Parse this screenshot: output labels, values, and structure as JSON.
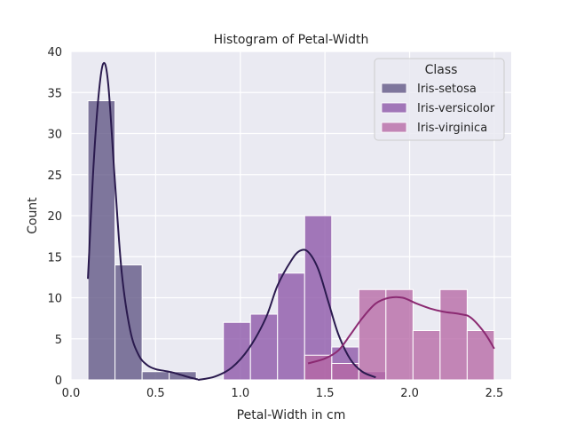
{
  "chart_data": {
    "type": "histogram",
    "title": "Histogram of Petal-Width",
    "xlabel": "Petal-Width in cm",
    "ylabel": "Count",
    "xlim": [
      0.0,
      2.6
    ],
    "ylim": [
      0,
      40
    ],
    "x_ticks": [
      "0.0",
      "0.5",
      "1.0",
      "1.5",
      "2.0",
      "2.5"
    ],
    "y_ticks": [
      "0",
      "5",
      "10",
      "15",
      "20",
      "25",
      "30",
      "35",
      "40"
    ],
    "grid": true,
    "legend": {
      "title": "Class",
      "placement": "top-right"
    },
    "bin_edges": [
      0.1,
      0.26,
      0.42,
      0.58,
      0.74,
      0.9,
      1.06,
      1.22,
      1.38,
      1.54,
      1.7,
      1.86,
      2.02,
      2.18,
      2.34,
      2.5
    ],
    "series": [
      {
        "name": "Iris-setosa",
        "color": "#5f5584",
        "line_color": "#2a1a4e",
        "counts": [
          34,
          14,
          1,
          1,
          0,
          0,
          0,
          0,
          0,
          0,
          0,
          0,
          0,
          0,
          0
        ],
        "kde": [
          [
            0.1,
            12.3
          ],
          [
            0.13,
            25
          ],
          [
            0.16,
            34
          ],
          [
            0.19,
            38.5
          ],
          [
            0.22,
            36
          ],
          [
            0.26,
            24
          ],
          [
            0.3,
            13
          ],
          [
            0.35,
            6
          ],
          [
            0.4,
            3
          ],
          [
            0.45,
            1.8
          ],
          [
            0.5,
            1.3
          ],
          [
            0.55,
            1.1
          ],
          [
            0.6,
            0.9
          ],
          [
            0.65,
            0.6
          ],
          [
            0.7,
            0.3
          ],
          [
            0.75,
            0.05
          ]
        ]
      },
      {
        "name": "Iris-versicolor",
        "color": "#8c54a8",
        "line_color": "#2a1a4e",
        "counts": [
          0,
          0,
          0,
          0,
          0,
          7,
          8,
          13,
          20,
          4,
          1,
          0,
          0,
          0,
          0
        ],
        "kde": [
          [
            0.75,
            0
          ],
          [
            0.85,
            0.4
          ],
          [
            0.95,
            1.5
          ],
          [
            1.05,
            3.8
          ],
          [
            1.15,
            7.5
          ],
          [
            1.22,
            11.5
          ],
          [
            1.3,
            14.5
          ],
          [
            1.35,
            15.7
          ],
          [
            1.4,
            15.6
          ],
          [
            1.46,
            13.5
          ],
          [
            1.52,
            9.5
          ],
          [
            1.58,
            5.5
          ],
          [
            1.65,
            2.5
          ],
          [
            1.72,
            1
          ],
          [
            1.8,
            0.3
          ]
        ]
      },
      {
        "name": "Iris-virginica",
        "color": "#b668a5",
        "line_color": "#8b2a72",
        "counts": [
          0,
          0,
          0,
          0,
          0,
          0,
          0,
          0,
          3,
          2,
          11,
          11,
          6,
          11,
          6
        ],
        "kde": [
          [
            1.4,
            2
          ],
          [
            1.5,
            2.6
          ],
          [
            1.58,
            3.6
          ],
          [
            1.65,
            5.5
          ],
          [
            1.72,
            7.5
          ],
          [
            1.8,
            9.3
          ],
          [
            1.88,
            10
          ],
          [
            1.96,
            10
          ],
          [
            2.04,
            9.3
          ],
          [
            2.12,
            8.7
          ],
          [
            2.2,
            8.3
          ],
          [
            2.3,
            8
          ],
          [
            2.36,
            7.6
          ],
          [
            2.44,
            5.8
          ],
          [
            2.5,
            3.8
          ]
        ]
      }
    ]
  }
}
